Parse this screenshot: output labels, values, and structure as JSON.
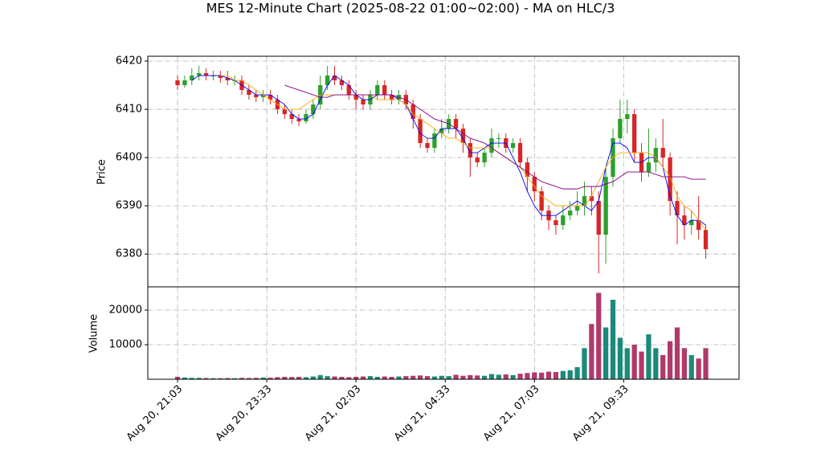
{
  "chart_data": [
    {
      "type": "candlestick",
      "title": "MES 12-Minute Chart (2025-08-22 01:00~02:00) - MA on HLC/3",
      "ylabel": "Price",
      "x": [
        0,
        12,
        24,
        36,
        48,
        60,
        72,
        84,
        96,
        108,
        120,
        132,
        144,
        156,
        168,
        180,
        192,
        204,
        216,
        228,
        240,
        252,
        264,
        276,
        288,
        300,
        312,
        324,
        336,
        348,
        360,
        372,
        384,
        396,
        408,
        420,
        432,
        444,
        456,
        468,
        480,
        492,
        504,
        516,
        528,
        540,
        552,
        564,
        576,
        588,
        600,
        612,
        624,
        636,
        648,
        660,
        672,
        684,
        696,
        708,
        720,
        732,
        744,
        756,
        768,
        780,
        792,
        804,
        816,
        828,
        840,
        852,
        864,
        876,
        888
      ],
      "open": [
        6416,
        6415,
        6416,
        6417,
        6417.5,
        6417,
        6417,
        6416.5,
        6416,
        6416,
        6414,
        6413,
        6412.5,
        6413,
        6412,
        6410,
        6409,
        6408,
        6407.5,
        6409,
        6411,
        6415,
        6417,
        6416,
        6415,
        6413,
        6412,
        6411,
        6413,
        6415,
        6413,
        6412,
        6413,
        6411,
        6408,
        6403,
        6402,
        6405,
        6406,
        6408,
        6406,
        6403,
        6400,
        6399,
        6401,
        6404,
        6404,
        6402,
        6403,
        6399,
        6396,
        6393,
        6389,
        6387,
        6386,
        6388,
        6389,
        6390,
        6392,
        6391,
        6384,
        6396,
        6404,
        6408,
        6409,
        6401,
        6397,
        6399,
        6402,
        6400,
        6391,
        6388,
        6386,
        6387,
        6385
      ],
      "high": [
        6417,
        6417,
        6418.5,
        6419,
        6418.5,
        6418,
        6418,
        6418,
        6417,
        6417,
        6415,
        6414,
        6414,
        6414,
        6413,
        6411,
        6410,
        6409,
        6410,
        6412,
        6417,
        6419,
        6419,
        6417,
        6416,
        6414,
        6413,
        6414,
        6416,
        6416,
        6414,
        6414,
        6414,
        6412,
        6409,
        6404,
        6406,
        6408,
        6409,
        6409,
        6407,
        6404,
        6401,
        6402,
        6406,
        6405,
        6405,
        6404,
        6404,
        6400,
        6397,
        6394,
        6390,
        6388,
        6390,
        6391,
        6393,
        6395,
        6394,
        6393,
        6398,
        6406,
        6412,
        6412,
        6410,
        6403,
        6406,
        6404,
        6408,
        6401,
        6393,
        6390,
        6389,
        6392,
        6386
      ],
      "low": [
        6414,
        6414.5,
        6415,
        6416,
        6416,
        6416,
        6415.5,
        6415,
        6415,
        6413,
        6412,
        6411.5,
        6411.5,
        6411,
        6409,
        6408,
        6407,
        6406.5,
        6407,
        6408,
        6410,
        6414,
        6415,
        6414,
        6412,
        6410,
        6410,
        6410,
        6412,
        6412,
        6411,
        6411,
        6410,
        6406,
        6402,
        6401,
        6401,
        6404,
        6405,
        6404,
        6401,
        6396,
        6398,
        6398,
        6400,
        6402,
        6401,
        6401,
        6398,
        6393,
        6391,
        6387,
        6385,
        6384,
        6385,
        6387,
        6388,
        6388,
        6388,
        6376,
        6378,
        6394,
        6403,
        6405,
        6399,
        6395,
        6396,
        6397,
        6398,
        6388,
        6382,
        6383,
        6384,
        6383,
        6379
      ],
      "close": [
        6415,
        6416,
        6417,
        6417.5,
        6417,
        6417,
        6416.5,
        6416,
        6416,
        6414,
        6413,
        6412.5,
        6413,
        6412,
        6410,
        6409,
        6408,
        6407.5,
        6409,
        6411,
        6415,
        6417,
        6416,
        6415,
        6413,
        6412,
        6411,
        6413,
        6415,
        6413,
        6412,
        6413,
        6411,
        6408,
        6403,
        6402,
        6405,
        6406,
        6408,
        6406,
        6403,
        6400,
        6399,
        6401,
        6404,
        6404,
        6402,
        6403,
        6399,
        6396,
        6393,
        6389,
        6387,
        6386,
        6388,
        6389,
        6390,
        6392,
        6391,
        6384,
        6396,
        6404,
        6408,
        6409,
        6401,
        6397,
        6399,
        6402,
        6400,
        6391,
        6388,
        6386,
        6387,
        6385,
        6381
      ],
      "series": [
        {
          "color": "#0000ff",
          "values": [
            null,
            null,
            6416,
            6417,
            6417,
            6417,
            6417,
            6416.5,
            6416,
            6415,
            6414,
            6413,
            6413,
            6413,
            6412,
            6411,
            6409,
            6408,
            6408,
            6409,
            6412,
            6415,
            6417,
            6416,
            6415,
            6413,
            6412,
            6412,
            6413,
            6413,
            6413,
            6412,
            6411,
            6408,
            6405,
            6404,
            6404,
            6406,
            6406,
            6406,
            6404,
            6401,
            6401,
            6402,
            6403,
            6403,
            6403,
            6400,
            6397,
            6393,
            6390,
            6388,
            6388,
            6388,
            6389,
            6390,
            6391,
            6390,
            6389,
            6391,
            6398,
            6403,
            6403,
            6402,
            6399,
            6399,
            6400,
            6400,
            6398,
            6392,
            6388,
            6386,
            6387,
            6387,
            6386
          ]
        },
        {
          "color": "#ffa500",
          "values": [
            null,
            null,
            null,
            null,
            null,
            null,
            6417,
            6417,
            6416,
            6416,
            6415,
            6414,
            6413,
            6412,
            6411,
            6410,
            6410,
            6410,
            6411,
            6412,
            6413,
            6413,
            6413,
            6413,
            6413,
            6413,
            6413,
            6413,
            6412,
            6412,
            6412,
            6412,
            6411,
            6409,
            6408,
            6407,
            6406,
            6405,
            6404,
            6404,
            6403,
            6402,
            6402,
            6402,
            6402,
            6401,
            6400,
            6399,
            6398,
            6396,
            6394,
            6392,
            6391,
            6390,
            6390,
            6390,
            6390,
            6390,
            6392,
            6395,
            6398,
            6400,
            6401,
            6401,
            6401,
            6401,
            6401,
            6400,
            6398,
            6396,
            6392,
            6390,
            6389,
            6387,
            6385
          ]
        },
        {
          "color": "#800080",
          "values": [
            null,
            null,
            null,
            null,
            null,
            null,
            null,
            null,
            null,
            null,
            null,
            null,
            null,
            null,
            null,
            6415,
            6414.5,
            6414,
            6413.5,
            6413,
            6412.5,
            6412.5,
            6413,
            6413,
            6413,
            6413,
            6413,
            6413,
            6413,
            6413,
            6413,
            6412.5,
            6412,
            6411,
            6410,
            6409,
            6408,
            6407.5,
            6407,
            6406,
            6405,
            6404,
            6403.5,
            6403,
            6402,
            6401,
            6400,
            6399,
            6398,
            6397,
            6396,
            6395,
            6394.5,
            6394,
            6393.5,
            6393.5,
            6393.5,
            6394,
            6394,
            6394,
            6394.5,
            6395,
            6396,
            6397,
            6397,
            6397,
            6397,
            6396.5,
            6396,
            6396,
            6396,
            6396,
            6395.5,
            6395.5,
            6395.5
          ]
        }
      ],
      "up_color": "#2ca02c",
      "down_color": "#d62728",
      "xlim": [
        -50,
        944
      ],
      "ylim": [
        6373.2,
        6421
      ],
      "yticks": [
        6380,
        6390,
        6400,
        6410,
        6420
      ],
      "grid": true
    },
    {
      "type": "bar",
      "ylabel": "Volume",
      "x": [
        0,
        12,
        24,
        36,
        48,
        60,
        72,
        84,
        96,
        108,
        120,
        132,
        144,
        156,
        168,
        180,
        192,
        204,
        216,
        228,
        240,
        252,
        264,
        276,
        288,
        300,
        312,
        324,
        336,
        348,
        360,
        372,
        384,
        396,
        408,
        420,
        432,
        444,
        456,
        468,
        480,
        492,
        504,
        516,
        528,
        540,
        552,
        564,
        576,
        588,
        600,
        612,
        624,
        636,
        648,
        660,
        672,
        684,
        696,
        708,
        720,
        732,
        744,
        756,
        768,
        780,
        792,
        804,
        816,
        828,
        840,
        852,
        864,
        876,
        888
      ],
      "values": [
        700,
        500,
        400,
        400,
        350,
        300,
        300,
        350,
        300,
        400,
        350,
        400,
        500,
        450,
        600,
        700,
        650,
        700,
        600,
        800,
        1200,
        900,
        800,
        700,
        600,
        700,
        800,
        900,
        700,
        800,
        700,
        800,
        900,
        1000,
        1100,
        900,
        800,
        1000,
        900,
        1300,
        1000,
        1200,
        1100,
        1000,
        1500,
        1300,
        1400,
        1200,
        1600,
        1800,
        2000,
        1900,
        2200,
        2100,
        2400,
        2600,
        3500,
        9000,
        16000,
        25000,
        15000,
        23000,
        12000,
        9000,
        10000,
        8000,
        13000,
        9000,
        7000,
        11000,
        15000,
        9000,
        7000,
        6000,
        9000
      ],
      "up_color": "#1a8a7a",
      "down_color": "#b03a6a",
      "xlim": [
        -50,
        944
      ],
      "ylim": [
        0,
        26744
      ],
      "yticks": [
        10000,
        20000
      ],
      "xticks": [
        {
          "value": 0,
          "label": "Aug 20, 21:03"
        },
        {
          "value": 150,
          "label": "Aug 20, 23:33"
        },
        {
          "value": 300,
          "label": "Aug 21, 02:03"
        },
        {
          "value": 450,
          "label": "Aug 21, 04:33"
        },
        {
          "value": 600,
          "label": "Aug 21, 07:03"
        },
        {
          "value": 750,
          "label": "Aug 21, 09:33"
        }
      ],
      "grid": true
    }
  ]
}
